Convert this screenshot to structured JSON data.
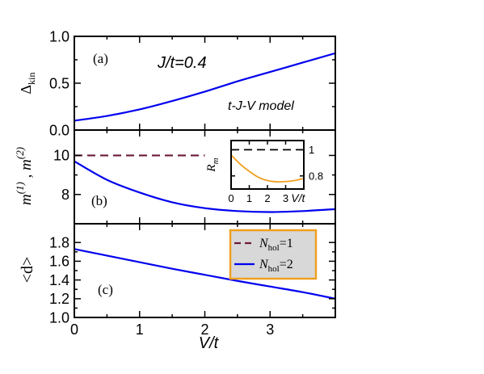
{
  "chart_data": [
    {
      "type": "line",
      "panel_label": "(a)",
      "annotation_main": "J/t=0.4",
      "annotation_model": "t-J-V  model",
      "ylabel": "Δkin",
      "xlim": [
        0,
        4
      ],
      "ylim": [
        0,
        1
      ],
      "yticks": [
        {
          "value": 0,
          "label": "0.0"
        },
        {
          "value": 0.5,
          "label": "0.5"
        },
        {
          "value": 1,
          "label": "1.0"
        }
      ],
      "series": [
        {
          "color": "#0000ee",
          "dash": "solid",
          "x": [
            0,
            0.5,
            1,
            1.5,
            2,
            2.5,
            3,
            3.5,
            4
          ],
          "y": [
            0.1,
            0.15,
            0.22,
            0.31,
            0.41,
            0.52,
            0.62,
            0.72,
            0.82
          ]
        }
      ]
    },
    {
      "type": "line",
      "panel_label": "(b)",
      "ylabel": "m(1) , m(2)",
      "xlim": [
        0,
        4
      ],
      "ylim": [
        6.5,
        11.3
      ],
      "yticks": [
        {
          "value": 8,
          "label": "8"
        },
        {
          "value": 10,
          "label": "10"
        }
      ],
      "series": [
        {
          "color": "#6b1a3a",
          "dash": "dashed",
          "x": [
            0,
            2
          ],
          "y": [
            10,
            10
          ]
        },
        {
          "color": "#0000ee",
          "dash": "solid",
          "x": [
            0,
            0.5,
            1,
            1.5,
            2,
            2.5,
            3,
            3.5,
            4
          ],
          "y": [
            9.7,
            8.75,
            8.1,
            7.6,
            7.3,
            7.15,
            7.1,
            7.15,
            7.25
          ]
        }
      ],
      "inset": {
        "ylabel": "Rm",
        "xlabel": "V/t",
        "xlim": [
          0,
          4
        ],
        "ylim": [
          0.7,
          1.07
        ],
        "xticks": [
          {
            "value": 0,
            "label": "0"
          },
          {
            "value": 1,
            "label": "1"
          },
          {
            "value": 2,
            "label": "2"
          },
          {
            "value": 3,
            "label": "3"
          }
        ],
        "yticks": [
          {
            "value": 0.8,
            "label": "0.8"
          },
          {
            "value": 1,
            "label": "1"
          }
        ],
        "series": [
          {
            "color": "#000000",
            "dash": "dashed",
            "x": [
              0,
              4
            ],
            "y": [
              1,
              1
            ]
          },
          {
            "color": "#f0a020",
            "dash": "solid",
            "x": [
              0,
              0.5,
              1,
              1.5,
              2,
              2.5,
              3,
              3.5,
              4
            ],
            "y": [
              0.96,
              0.89,
              0.835,
              0.79,
              0.765,
              0.755,
              0.757,
              0.765,
              0.78
            ]
          }
        ]
      }
    },
    {
      "type": "line",
      "panel_label": "(c)",
      "ylabel": "<d>",
      "xlabel": "V/t",
      "xlim": [
        0,
        4
      ],
      "ylim": [
        1,
        2
      ],
      "xticks": [
        {
          "value": 0,
          "label": "0"
        },
        {
          "value": 1,
          "label": "1"
        },
        {
          "value": 2,
          "label": "2"
        },
        {
          "value": 3,
          "label": "3"
        }
      ],
      "yticks": [
        {
          "value": 1.0,
          "label": "1.0"
        },
        {
          "value": 1.2,
          "label": "1.2"
        },
        {
          "value": 1.4,
          "label": "1.4"
        },
        {
          "value": 1.6,
          "label": "1.6"
        },
        {
          "value": 1.8,
          "label": "1.8"
        }
      ],
      "legend": {
        "placement": "top-right",
        "background": "#d8d8d8",
        "border": "#f0a020",
        "entries": [
          {
            "label": "Nhol=1",
            "color": "#6b1a3a",
            "dash": "dashed"
          },
          {
            "label": "Nhol=2",
            "color": "#0000ee",
            "dash": "solid"
          }
        ]
      },
      "series": [
        {
          "color": "#0000ee",
          "dash": "solid",
          "x": [
            0,
            0.5,
            1,
            1.5,
            2,
            2.5,
            3,
            3.5,
            4
          ],
          "y": [
            1.73,
            1.66,
            1.59,
            1.52,
            1.455,
            1.39,
            1.33,
            1.27,
            1.2
          ]
        }
      ]
    }
  ],
  "labels": {
    "ylabel_a_main": "Δ",
    "ylabel_a_sub": "kin",
    "ylabel_b_m1": "m",
    "ylabel_b_sup1": "(1)",
    "ylabel_b_sep": " , m",
    "ylabel_b_sup2": "(2)",
    "ylabel_c": "<d>",
    "inset_ylabel_main": "R",
    "inset_ylabel_sub": "m",
    "legend_1_main": "N",
    "legend_1_sub": "hol",
    "legend_1_rest": "=1",
    "legend_2_main": "N",
    "legend_2_sub": "hol",
    "legend_2_rest": "=2"
  }
}
